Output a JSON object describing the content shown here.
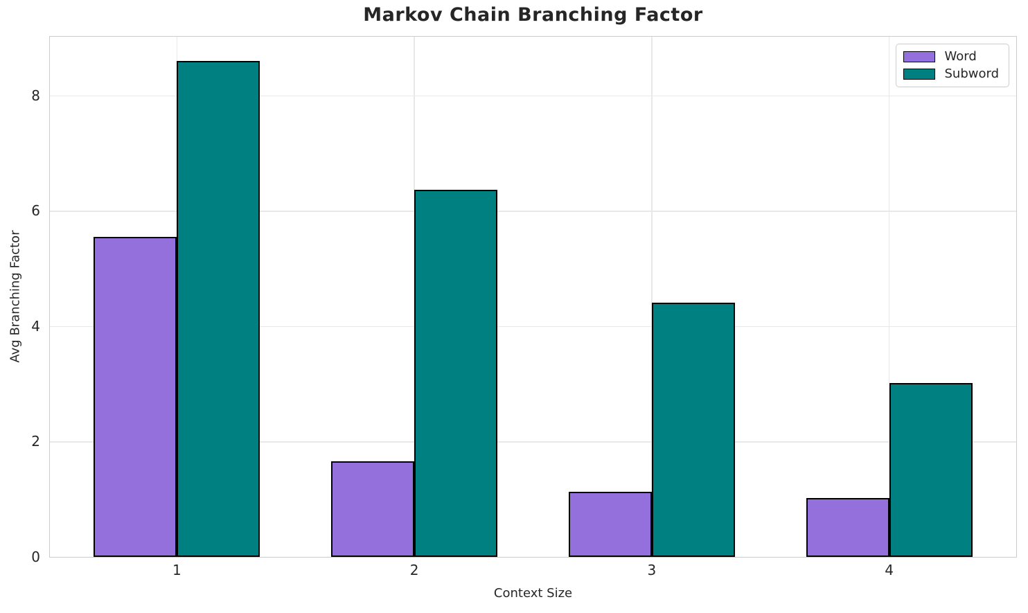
{
  "chart_data": {
    "type": "bar",
    "title": "Markov Chain Branching Factor",
    "xlabel": "Context Size",
    "ylabel": "Avg Branching Factor",
    "categories": [
      1,
      2,
      3,
      4
    ],
    "series": [
      {
        "name": "Word",
        "color": "#9370DB",
        "values": [
          5.55,
          1.66,
          1.13,
          1.02
        ]
      },
      {
        "name": "Subword",
        "color": "#008080",
        "values": [
          8.6,
          6.36,
          4.41,
          3.01
        ]
      }
    ],
    "bar_width": 0.35,
    "xlim": [
      0.465,
      4.535
    ],
    "ylim": [
      0,
      9.02
    ],
    "yticks": [
      0,
      2,
      4,
      6,
      8
    ],
    "grid": true,
    "legend_position": "upper right",
    "colors": {
      "bar_edge": "#000000",
      "grid": "#e8e8e8",
      "spine": "#cccccc",
      "text": "#262626"
    }
  }
}
